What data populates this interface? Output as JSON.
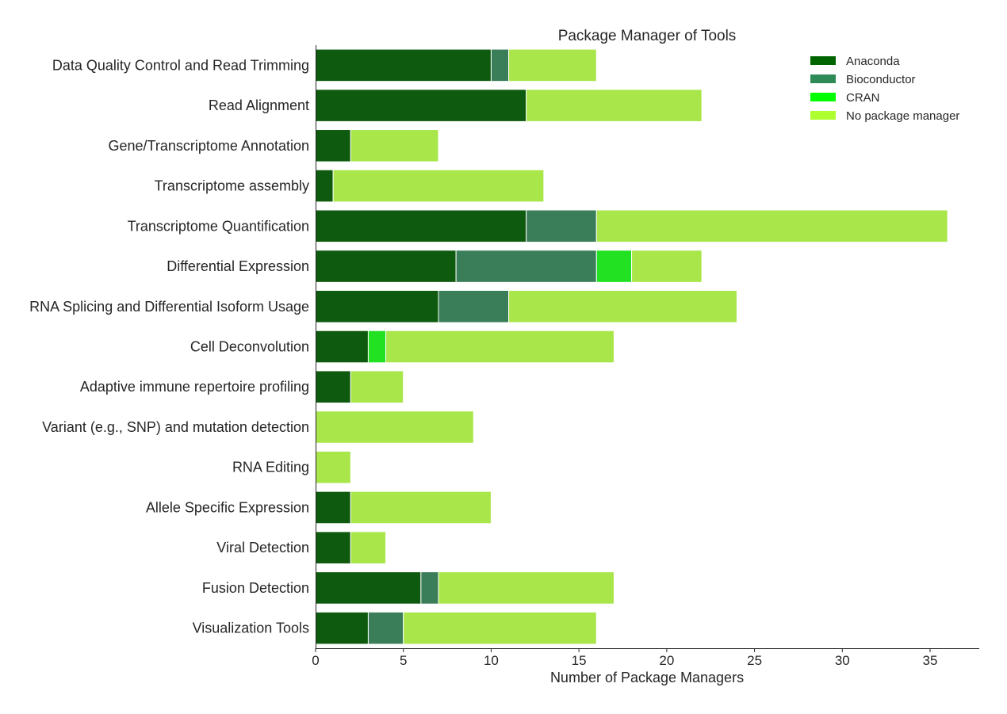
{
  "chart_data": {
    "type": "bar",
    "orientation": "horizontal",
    "stacked": true,
    "title": "Package Manager of Tools",
    "xlabel": "Number of Package Managers",
    "ylabel": "",
    "xlim": [
      0,
      37.8
    ],
    "xticks": [
      0,
      5,
      10,
      15,
      20,
      25,
      30,
      35
    ],
    "grid": false,
    "legend_position": "top-right",
    "categories": [
      "Data Quality Control and Read Trimming",
      "Read Alignment",
      "Gene/Transcriptome Annotation ",
      "Transcriptome assembly ",
      "Transcriptome Quantification",
      "Differential Expression",
      "RNA Splicing and Differential Isoform Usage",
      "Cell Deconvolution",
      "Adaptive immune repertoire profiling",
      "Variant (e.g., SNP) and mutation detection",
      "RNA Editing",
      "Allele Specific Expression",
      "Viral Detection",
      "Fusion Detection",
      "Visualization Tools"
    ],
    "series": [
      {
        "name": "Anaconda",
        "color": "#0e5a0e",
        "legend_color": "#006400",
        "values": [
          10,
          12,
          2,
          1,
          12,
          8,
          7,
          3,
          2,
          0,
          0,
          2,
          2,
          6,
          3
        ]
      },
      {
        "name": "Bioconductor",
        "color": "#3a7d59",
        "legend_color": "#2e8b57",
        "values": [
          1,
          0,
          0,
          0,
          4,
          8,
          4,
          0,
          0,
          0,
          0,
          0,
          0,
          1,
          2
        ]
      },
      {
        "name": "CRAN",
        "color": "#22e022",
        "legend_color": "#00ff00",
        "values": [
          0,
          0,
          0,
          0,
          0,
          2,
          0,
          1,
          0,
          0,
          0,
          0,
          0,
          0,
          0
        ]
      },
      {
        "name": "No package manager",
        "color": "#a8e64a",
        "legend_color": "#adff2f",
        "values": [
          5,
          10,
          5,
          12,
          20,
          4,
          13,
          13,
          3,
          9,
          2,
          8,
          2,
          10,
          11
        ]
      }
    ]
  }
}
